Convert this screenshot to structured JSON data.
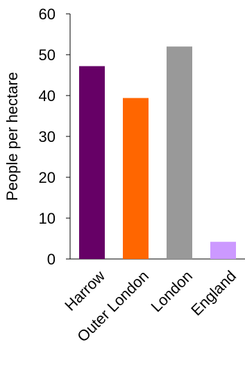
{
  "chart_data": {
    "type": "bar",
    "title": "",
    "xlabel": "",
    "ylabel": "People per hectare",
    "categories": [
      "Harrow",
      "Outer London",
      "London",
      "England"
    ],
    "values": [
      47.2,
      39.4,
      52.0,
      4.2
    ],
    "colors": [
      "#660066",
      "#ff6600",
      "#999999",
      "#cc99ff"
    ],
    "ylim": [
      0,
      60
    ],
    "yticks": [
      "0",
      "10",
      "20",
      "30",
      "40",
      "50",
      "60"
    ],
    "grid": false,
    "legend": "none"
  }
}
